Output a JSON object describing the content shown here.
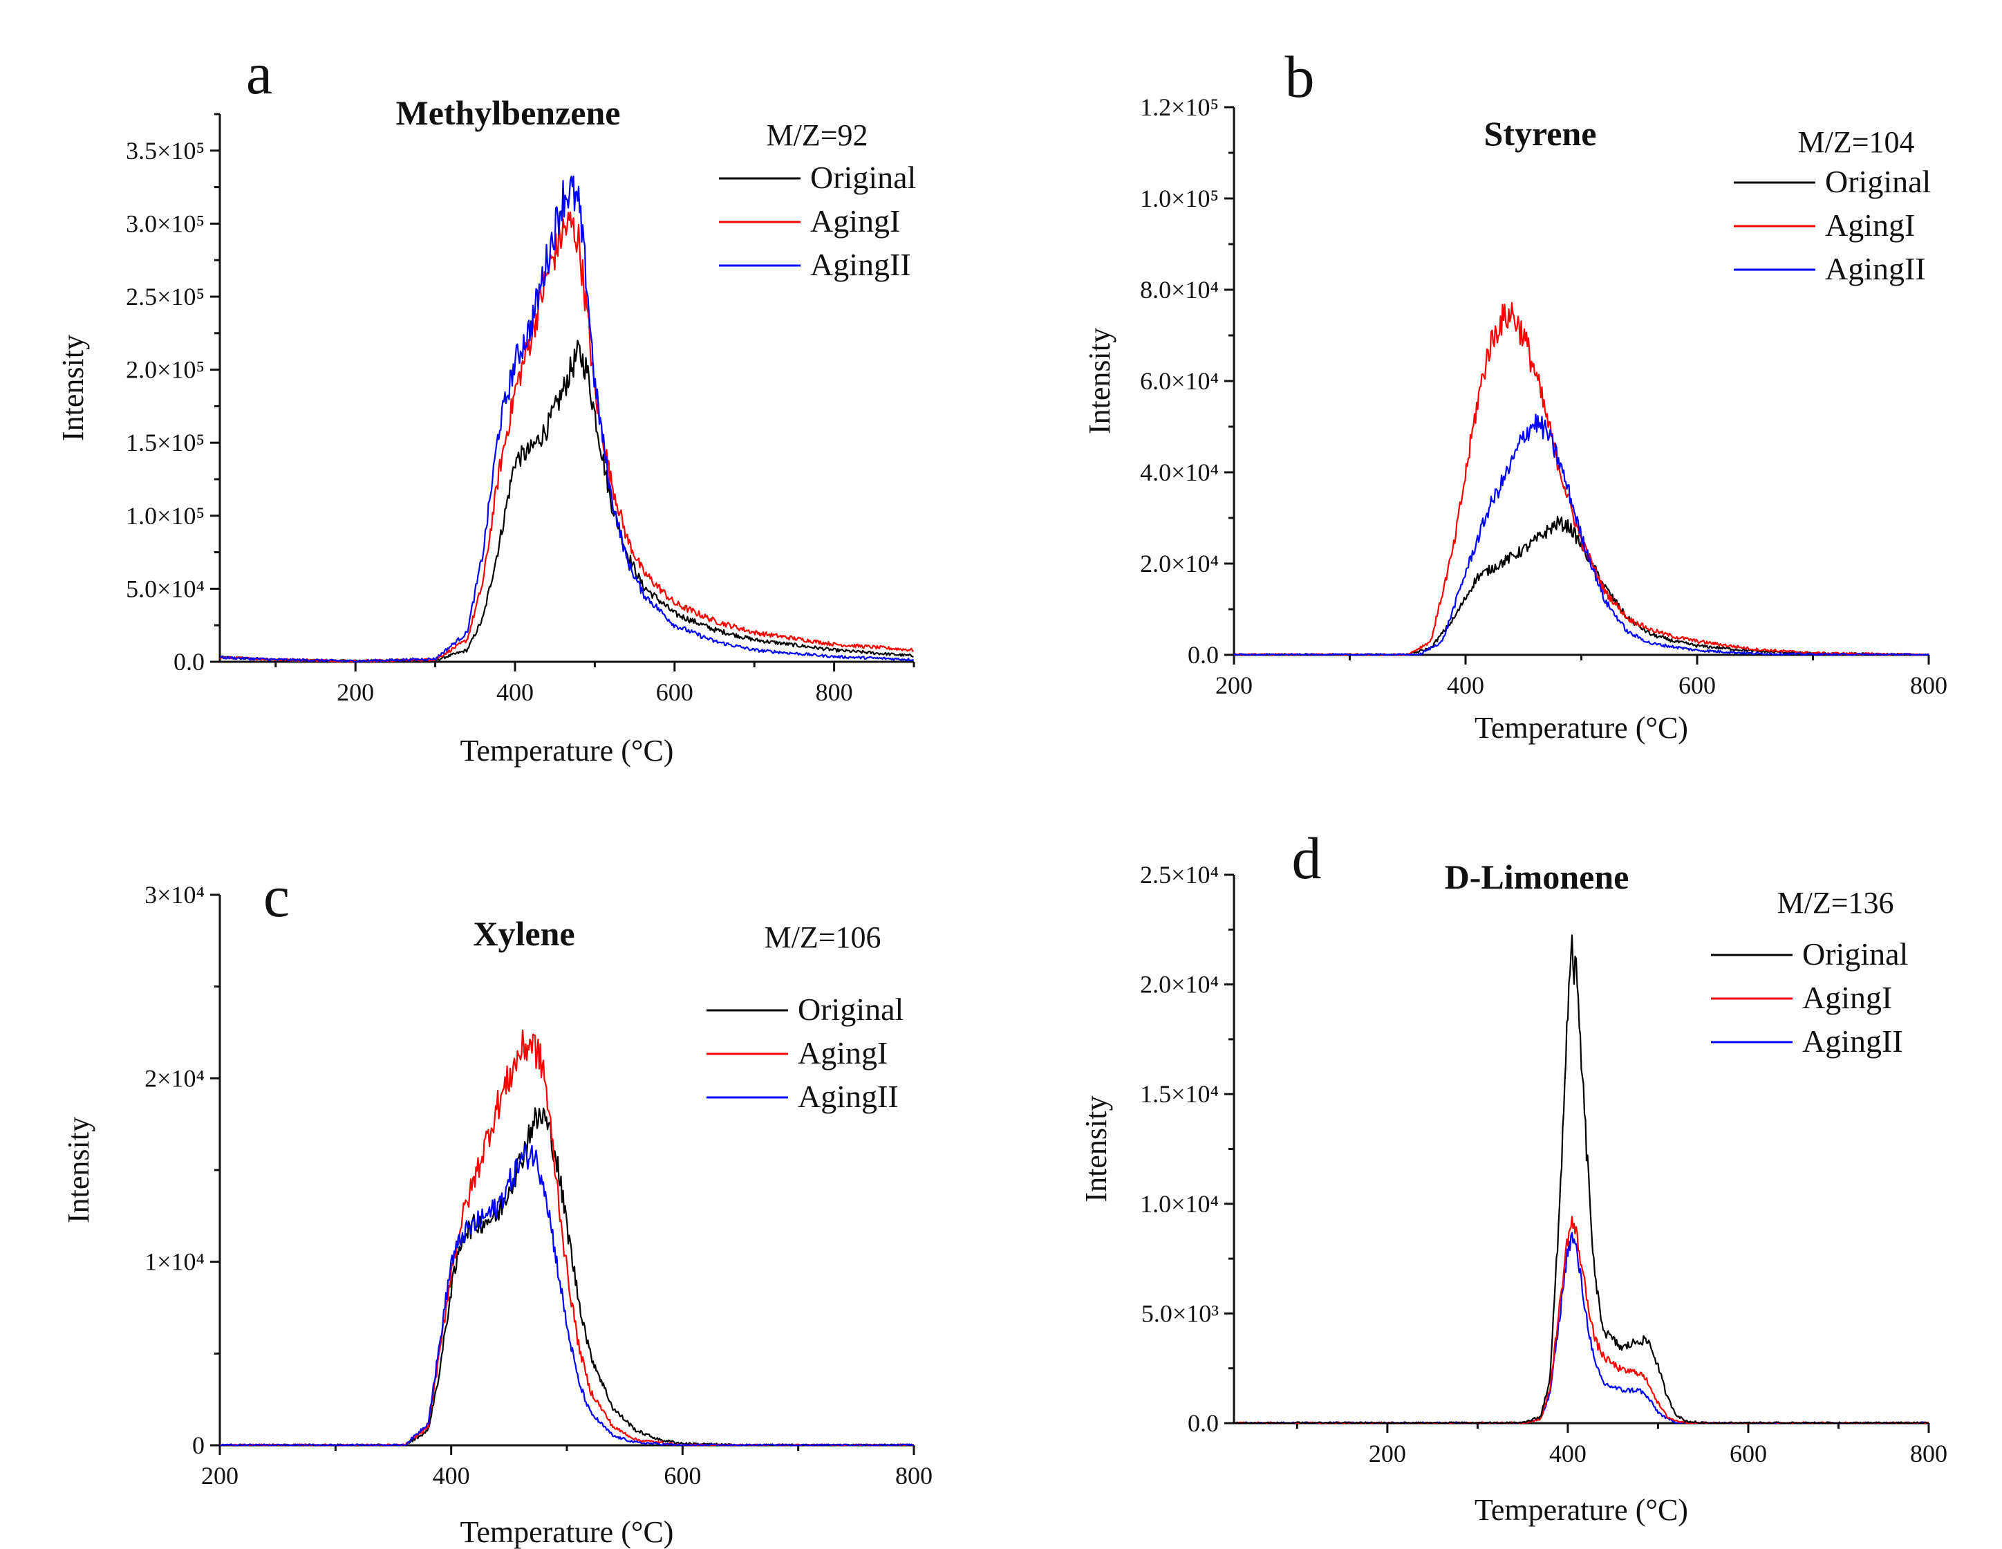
{
  "colors": {
    "Original": "#000000",
    "AgingI": "#ff0000",
    "AgingII": "#0000ff"
  },
  "chart_data": [
    {
      "panel": "a",
      "type": "line",
      "title": "Methylbenzene",
      "annotation": "M/Z=92",
      "xlabel": "Temperature (°C)",
      "ylabel": "Intensity",
      "xlim": [
        30,
        900
      ],
      "ylim": [
        0,
        375000
      ],
      "xticks": [
        200,
        400,
        600,
        800
      ],
      "yticks": [
        0,
        50000,
        100000,
        150000,
        200000,
        250000,
        300000,
        350000
      ],
      "ytick_labels": [
        "0.0",
        "5.0×10⁴",
        "1.0×10⁵",
        "1.5×10⁵",
        "2.0×10⁵",
        "2.5×10⁵",
        "3.0×10⁵",
        "3.5×10⁵"
      ],
      "legend": [
        "Original",
        "AgingI",
        "AgingII"
      ],
      "series": [
        {
          "name": "Original",
          "x": [
            30,
            100,
            200,
            300,
            340,
            360,
            380,
            400,
            420,
            440,
            460,
            470,
            480,
            490,
            500,
            520,
            540,
            560,
            600,
            650,
            700,
            800,
            900
          ],
          "y": [
            3000,
            1500,
            500,
            1000,
            8000,
            30000,
            80000,
            138000,
            145000,
            160000,
            185000,
            200000,
            212000,
            200000,
            170000,
            110000,
            75000,
            52000,
            33000,
            22000,
            15000,
            8000,
            4000
          ]
        },
        {
          "name": "AgingI",
          "x": [
            30,
            100,
            200,
            300,
            340,
            360,
            380,
            400,
            420,
            440,
            460,
            470,
            480,
            490,
            500,
            520,
            540,
            560,
            600,
            650,
            700,
            800,
            900
          ],
          "y": [
            3000,
            1500,
            500,
            1500,
            15000,
            55000,
            130000,
            185000,
            222000,
            265000,
            295000,
            300000,
            288000,
            240000,
            185000,
            125000,
            85000,
            62000,
            40000,
            28000,
            20000,
            12000,
            8000
          ]
        },
        {
          "name": "AgingII",
          "x": [
            30,
            100,
            200,
            300,
            340,
            360,
            380,
            400,
            420,
            440,
            460,
            470,
            480,
            490,
            500,
            520,
            540,
            560,
            600,
            650,
            700,
            800,
            900
          ],
          "y": [
            3000,
            1500,
            500,
            2000,
            20000,
            75000,
            160000,
            205000,
            230000,
            275000,
            318000,
            323000,
            312000,
            260000,
            190000,
            115000,
            70000,
            47000,
            25000,
            14000,
            8000,
            3500,
            1500
          ]
        }
      ]
    },
    {
      "panel": "b",
      "type": "line",
      "title": "Styrene",
      "annotation": "M/Z=104",
      "xlabel": "Temperature (°C)",
      "ylabel": "Intensity",
      "xlim": [
        200,
        800
      ],
      "ylim": [
        0,
        120000
      ],
      "xticks": [
        200,
        400,
        600,
        800
      ],
      "yticks": [
        0,
        20000,
        40000,
        60000,
        80000,
        100000,
        120000
      ],
      "ytick_labels": [
        "0.0",
        "2.0×10⁴",
        "4.0×10⁴",
        "6.0×10⁴",
        "8.0×10⁴",
        "1.0×10⁵",
        "1.2×10⁵"
      ],
      "legend": [
        "Original",
        "AgingI",
        "AgingII"
      ],
      "series": [
        {
          "name": "Original",
          "x": [
            200,
            350,
            370,
            390,
            410,
            430,
            450,
            470,
            480,
            490,
            500,
            520,
            540,
            560,
            580,
            600,
            650,
            700,
            800
          ],
          "y": [
            0,
            0,
            1500,
            8000,
            17000,
            20000,
            23000,
            27000,
            29000,
            28000,
            24000,
            15000,
            8000,
            4500,
            3000,
            2000,
            800,
            300,
            0
          ]
        },
        {
          "name": "AgingI",
          "x": [
            200,
            350,
            370,
            390,
            410,
            420,
            430,
            440,
            450,
            460,
            470,
            480,
            490,
            500,
            520,
            540,
            560,
            580,
            600,
            650,
            700,
            800
          ],
          "y": [
            0,
            0,
            3000,
            24000,
            55000,
            67000,
            73000,
            75000,
            70000,
            62000,
            52000,
            42000,
            33000,
            25000,
            14000,
            8000,
            5500,
            4000,
            3000,
            1200,
            400,
            0
          ]
        },
        {
          "name": "AgingII",
          "x": [
            200,
            360,
            380,
            400,
            420,
            440,
            450,
            460,
            470,
            480,
            490,
            500,
            520,
            540,
            560,
            600,
            650,
            700,
            800
          ],
          "y": [
            0,
            0,
            3000,
            18000,
            32000,
            42000,
            48000,
            51000,
            49000,
            43000,
            35000,
            26000,
            12000,
            5000,
            2500,
            1000,
            300,
            100,
            0
          ]
        }
      ]
    },
    {
      "panel": "c",
      "type": "line",
      "title": "Xylene",
      "annotation": "M/Z=106",
      "xlabel": "Temperature (°C)",
      "ylabel": "Intensity",
      "xlim": [
        200,
        800
      ],
      "ylim": [
        0,
        30000
      ],
      "xticks": [
        200,
        400,
        600,
        800
      ],
      "yticks": [
        0,
        10000,
        20000,
        30000
      ],
      "ytick_labels": [
        "0",
        "1×10⁴",
        "2×10⁴",
        "3×10⁴"
      ],
      "legend": [
        "Original",
        "AgingI",
        "AgingII"
      ],
      "series": [
        {
          "name": "Original",
          "x": [
            200,
            360,
            380,
            390,
            400,
            410,
            420,
            440,
            460,
            470,
            480,
            490,
            500,
            510,
            520,
            540,
            560,
            580,
            600,
            650,
            800
          ],
          "y": [
            0,
            0,
            800,
            4000,
            8500,
            11500,
            12000,
            12500,
            15500,
            17500,
            18000,
            16000,
            12000,
            8000,
            5000,
            2000,
            800,
            300,
            100,
            0,
            0
          ]
        },
        {
          "name": "AgingI",
          "x": [
            200,
            360,
            380,
            390,
            400,
            410,
            420,
            440,
            460,
            470,
            480,
            490,
            500,
            510,
            520,
            540,
            560,
            600,
            800
          ],
          "y": [
            0,
            0,
            1000,
            5000,
            9500,
            12500,
            14500,
            18500,
            21500,
            22000,
            20500,
            15000,
            9500,
            5500,
            3000,
            1000,
            300,
            0,
            0
          ]
        },
        {
          "name": "AgingII",
          "x": [
            200,
            360,
            380,
            390,
            400,
            410,
            420,
            440,
            460,
            470,
            480,
            490,
            500,
            510,
            520,
            540,
            560,
            600,
            800
          ],
          "y": [
            0,
            0,
            1200,
            5500,
            10000,
            11500,
            12000,
            13000,
            15500,
            16000,
            14500,
            10500,
            6500,
            3500,
            1800,
            500,
            150,
            0,
            0
          ]
        }
      ]
    },
    {
      "panel": "d",
      "type": "line",
      "title": "D-Limonene",
      "annotation": "M/Z=136",
      "xlabel": "Temperature (°C)",
      "ylabel": "Intensity",
      "xlim": [
        30,
        800
      ],
      "ylim": [
        0,
        25000
      ],
      "xticks": [
        200,
        400,
        600,
        800
      ],
      "yticks": [
        0,
        5000,
        10000,
        15000,
        20000,
        25000
      ],
      "ytick_labels": [
        "0.0",
        "5.0×10³",
        "1.0×10⁴",
        "1.5×10⁴",
        "2.0×10⁴",
        "2.5×10⁴"
      ],
      "legend": [
        "Original",
        "AgingI",
        "AgingII"
      ],
      "series": [
        {
          "name": "Original",
          "x": [
            30,
            350,
            370,
            380,
            390,
            400,
            405,
            410,
            420,
            430,
            440,
            460,
            480,
            490,
            500,
            510,
            520,
            530,
            550,
            800
          ],
          "y": [
            0,
            0,
            300,
            2000,
            9000,
            19000,
            21500,
            20000,
            13000,
            6500,
            4200,
            3400,
            3800,
            3700,
            2600,
            1200,
            400,
            100,
            0,
            0
          ]
        },
        {
          "name": "AgingI",
          "x": [
            30,
            350,
            370,
            380,
            390,
            400,
            405,
            410,
            420,
            430,
            440,
            460,
            480,
            490,
            500,
            510,
            520,
            540,
            800
          ],
          "y": [
            0,
            0,
            200,
            1500,
            5000,
            8500,
            9200,
            8500,
            6000,
            3800,
            3000,
            2400,
            2300,
            1800,
            900,
            300,
            100,
            0,
            0
          ]
        },
        {
          "name": "AgingII",
          "x": [
            30,
            350,
            370,
            380,
            390,
            400,
            405,
            410,
            420,
            430,
            440,
            460,
            480,
            490,
            500,
            510,
            520,
            540,
            800
          ],
          "y": [
            0,
            0,
            200,
            1300,
            4500,
            8000,
            8500,
            7800,
            5000,
            2700,
            1800,
            1500,
            1500,
            1100,
            500,
            200,
            50,
            0,
            0
          ]
        }
      ]
    }
  ]
}
